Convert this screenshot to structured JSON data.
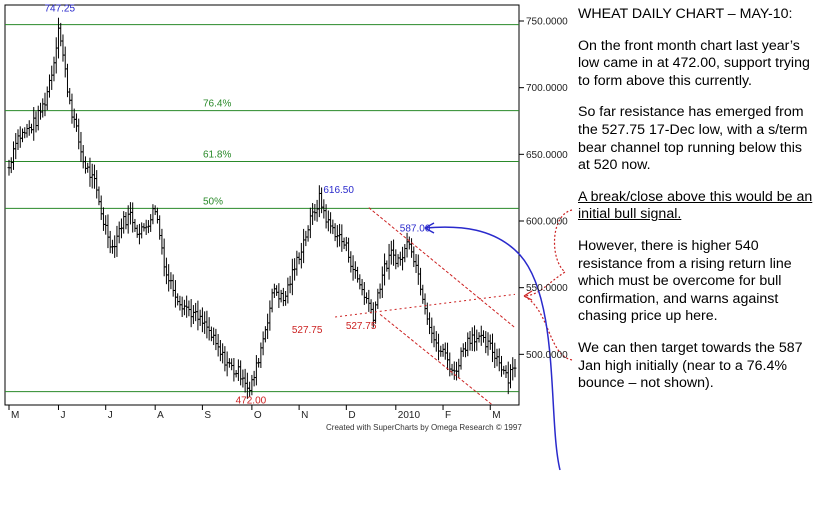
{
  "text_panel": {
    "title": "WHEAT DAILY CHART – MAY-10:",
    "p1": "On the front month chart last year’s low came in at 472.00, support trying to form above this currently.",
    "p2": "So far resistance has emerged from the 527.75 17-Dec low, with a s/term bear channel top running below this at 520 now.",
    "p3": "A break/close above this would be an initial bull signal.",
    "p4": "However, there is higher 540 resistance from a rising return line which must be overcome for bull confirmation, and warns against chasing price up here.",
    "p5": "We can then target towards the 587 Jan high initially (near to a 76.4% bounce – not shown)."
  },
  "chart_data": {
    "type": "ohlc",
    "title": "",
    "credit": "Created with SuperCharts by Omega Research © 1997",
    "y_axis": {
      "range": [
        462,
        762
      ],
      "ticks": [
        500,
        550,
        600,
        650,
        700,
        750
      ],
      "tick_labels": [
        "500.0000",
        "550.0000",
        "600.0000",
        "650.0000",
        "700.0000",
        "750.0000"
      ]
    },
    "x_axis": {
      "month_labels": [
        "M",
        "J",
        "J",
        "A",
        "S",
        "O",
        "N",
        "D",
        "2010",
        "F",
        "M"
      ],
      "month_index": [
        0,
        22,
        43,
        65,
        86,
        108,
        129,
        150,
        172,
        193,
        214
      ]
    },
    "levels": [
      {
        "value": 747.25,
        "label": ""
      },
      {
        "value": 682.8,
        "label": "76.4%"
      },
      {
        "value": 644.6,
        "label": "61.8%"
      },
      {
        "value": 609.5,
        "label": "50%"
      },
      {
        "value": 472.0,
        "label": ""
      }
    ],
    "annotations": [
      {
        "text": "747.25",
        "x": 22,
        "y": 757,
        "color": "#2a2acc"
      },
      {
        "text": "616.50",
        "x": 146,
        "y": 621,
        "color": "#2a2acc"
      },
      {
        "text": "587.00",
        "x": 180,
        "y": 592,
        "color": "#2a2acc"
      },
      {
        "text": "527.75",
        "x": 132,
        "y": 516,
        "color": "#cc2222"
      },
      {
        "text": "527.75",
        "x": 156,
        "y": 519,
        "color": "#cc2222"
      },
      {
        "text": "472.00",
        "x": 107,
        "y": 463,
        "color": "#cc2222"
      }
    ],
    "channel_upper": [
      [
        160,
        610
      ],
      [
        225,
        520
      ]
    ],
    "channel_lower": [
      [
        165,
        530
      ],
      [
        215,
        462
      ]
    ],
    "return_line": [
      [
        145,
        528
      ],
      [
        225,
        545
      ]
    ],
    "keypoints": [
      [
        0,
        640
      ],
      [
        3,
        662
      ],
      [
        7,
        666
      ],
      [
        12,
        675
      ],
      [
        16,
        690
      ],
      [
        20,
        720
      ],
      [
        22,
        747
      ],
      [
        26,
        700
      ],
      [
        28,
        682
      ],
      [
        33,
        645
      ],
      [
        38,
        628
      ],
      [
        42,
        600
      ],
      [
        46,
        580
      ],
      [
        50,
        598
      ],
      [
        54,
        605
      ],
      [
        58,
        590
      ],
      [
        62,
        600
      ],
      [
        65,
        610
      ],
      [
        70,
        560
      ],
      [
        76,
        540
      ],
      [
        82,
        530
      ],
      [
        88,
        520
      ],
      [
        94,
        500
      ],
      [
        100,
        488
      ],
      [
        104,
        485
      ],
      [
        107,
        472
      ],
      [
        110,
        490
      ],
      [
        114,
        520
      ],
      [
        118,
        550
      ],
      [
        122,
        540
      ],
      [
        126,
        560
      ],
      [
        130,
        580
      ],
      [
        134,
        600
      ],
      [
        138,
        616.5
      ],
      [
        142,
        598
      ],
      [
        146,
        590
      ],
      [
        150,
        580
      ],
      [
        154,
        560
      ],
      [
        158,
        545
      ],
      [
        162,
        530
      ],
      [
        166,
        560
      ],
      [
        170,
        575
      ],
      [
        174,
        570
      ],
      [
        178,
        587
      ],
      [
        182,
        560
      ],
      [
        186,
        530
      ],
      [
        190,
        505
      ],
      [
        194,
        500
      ],
      [
        198,
        485
      ],
      [
        202,
        505
      ],
      [
        206,
        515
      ],
      [
        210,
        510
      ],
      [
        214,
        505
      ],
      [
        218,
        495
      ],
      [
        222,
        483
      ],
      [
        224,
        492
      ]
    ]
  }
}
